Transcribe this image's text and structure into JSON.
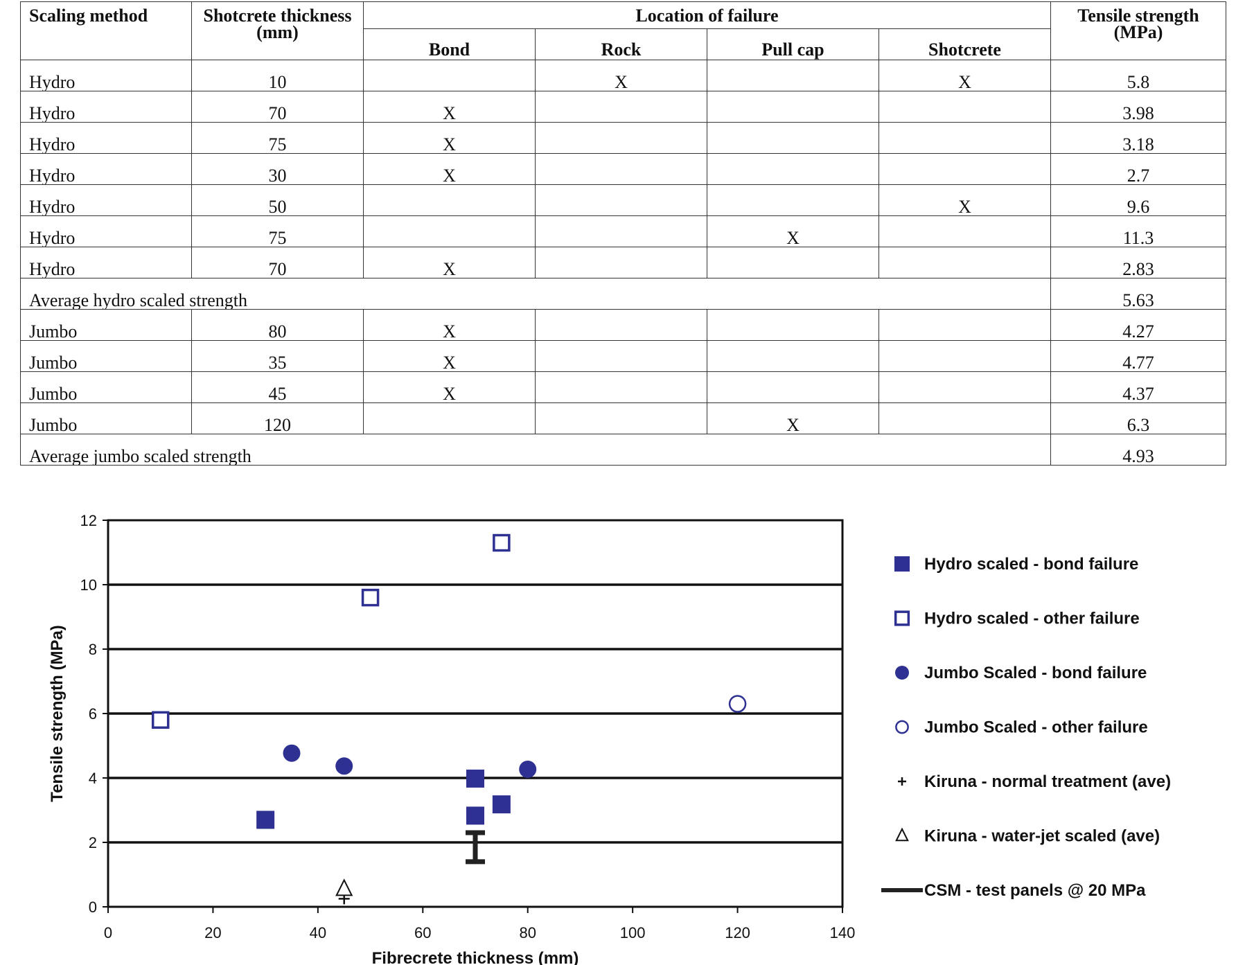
{
  "table": {
    "headers": {
      "scaling_method": "Scaling method",
      "thickness_line1": "Shotcrete thickness",
      "thickness_line2": "(mm)",
      "location": "Location of failure",
      "bond": "Bond",
      "rock": "Rock",
      "pull_cap": "Pull cap",
      "shotcrete": "Shotcrete",
      "tensile_line1": "Tensile strength",
      "tensile_line2": "(MPa)"
    },
    "rows": [
      {
        "method": "Hydro",
        "thickness": "10",
        "bond": "",
        "rock": "X",
        "pull_cap": "",
        "shotcrete": "X",
        "strength": "5.8"
      },
      {
        "method": "Hydro",
        "thickness": "70",
        "bond": "X",
        "rock": "",
        "pull_cap": "",
        "shotcrete": "",
        "strength": "3.98"
      },
      {
        "method": "Hydro",
        "thickness": "75",
        "bond": "X",
        "rock": "",
        "pull_cap": "",
        "shotcrete": "",
        "strength": "3.18"
      },
      {
        "method": "Hydro",
        "thickness": "30",
        "bond": "X",
        "rock": "",
        "pull_cap": "",
        "shotcrete": "",
        "strength": "2.7"
      },
      {
        "method": "Hydro",
        "thickness": "50",
        "bond": "",
        "rock": "",
        "pull_cap": "",
        "shotcrete": "X",
        "strength": "9.6"
      },
      {
        "method": "Hydro",
        "thickness": "75",
        "bond": "",
        "rock": "",
        "pull_cap": "X",
        "shotcrete": "",
        "strength": "11.3"
      },
      {
        "method": "Hydro",
        "thickness": "70",
        "bond": "X",
        "rock": "",
        "pull_cap": "",
        "shotcrete": "",
        "strength": "2.83"
      },
      {
        "average": "Average hydro scaled strength",
        "strength": "5.63"
      },
      {
        "method": "Jumbo",
        "thickness": "80",
        "bond": "X",
        "rock": "",
        "pull_cap": "",
        "shotcrete": "",
        "strength": "4.27"
      },
      {
        "method": "Jumbo",
        "thickness": "35",
        "bond": "X",
        "rock": "",
        "pull_cap": "",
        "shotcrete": "",
        "strength": "4.77"
      },
      {
        "method": "Jumbo",
        "thickness": "45",
        "bond": "X",
        "rock": "",
        "pull_cap": "",
        "shotcrete": "",
        "strength": "4.37"
      },
      {
        "method": "Jumbo",
        "thickness": "120",
        "bond": "",
        "rock": "",
        "pull_cap": "X",
        "shotcrete": "",
        "strength": "6.3"
      },
      {
        "average": "Average jumbo scaled strength",
        "strength": "4.93"
      }
    ]
  },
  "chart_data": {
    "type": "scatter",
    "title": "",
    "xlabel": "Fibrecrete thickness (mm)",
    "ylabel": "Tensile strength  (MPa)",
    "xlim": [
      0,
      140
    ],
    "ylim": [
      0,
      12
    ],
    "xticks": [
      0,
      20,
      40,
      60,
      80,
      100,
      120,
      140
    ],
    "yticks": [
      0,
      2,
      4,
      6,
      8,
      10,
      12
    ],
    "grid": "horizontal",
    "legend_position": "right",
    "colors": {
      "series": "#2e3192",
      "kiruna": "#111111",
      "csm": "#222222"
    },
    "series": [
      {
        "name": "Hydro scaled - bond failure",
        "marker": "filled-square",
        "points": [
          [
            70,
            3.98
          ],
          [
            75,
            3.18
          ],
          [
            30,
            2.7
          ],
          [
            70,
            2.83
          ]
        ]
      },
      {
        "name": "Hydro scaled - other failure",
        "marker": "open-square",
        "points": [
          [
            10,
            5.8
          ],
          [
            50,
            9.6
          ],
          [
            75,
            11.3
          ]
        ]
      },
      {
        "name": "Jumbo Scaled - bond failure",
        "marker": "filled-circle",
        "points": [
          [
            80,
            4.27
          ],
          [
            35,
            4.77
          ],
          [
            45,
            4.37
          ]
        ]
      },
      {
        "name": "Jumbo Scaled - other failure",
        "marker": "open-circle",
        "points": [
          [
            120,
            6.3
          ]
        ]
      },
      {
        "name": "Kiruna - normal treatment (ave)",
        "marker": "plus",
        "points": [
          [
            45,
            0.25
          ]
        ]
      },
      {
        "name": "Kiruna - water-jet scaled (ave)",
        "marker": "open-triangle",
        "points": [
          [
            45,
            0.55
          ]
        ]
      },
      {
        "name": "CSM - test panels @ 20 MPa",
        "marker": "range-bar",
        "points": [
          [
            70,
            1.4,
            2.3
          ]
        ]
      }
    ]
  }
}
